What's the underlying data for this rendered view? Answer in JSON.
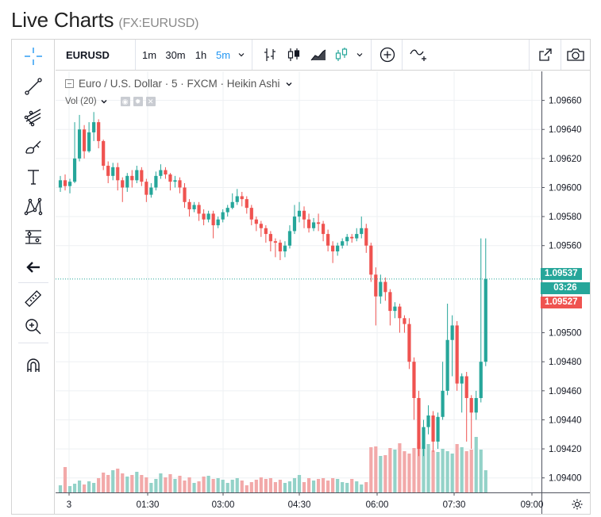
{
  "page": {
    "title": "Live Charts",
    "subtitle": "(FX:EURUSD)"
  },
  "toolbar": {
    "symbol": "EURUSD",
    "intervals": [
      "1m",
      "30m",
      "1h",
      "5m"
    ],
    "active_interval": "5m"
  },
  "legend": {
    "series": "Euro / U.S. Dollar · 5 · FXCM · Heikin Ashi",
    "volume": "Vol (20)"
  },
  "badges": {
    "last_price": "1.09537",
    "countdown": "03:26",
    "bid_price": "1.09527"
  },
  "colors": {
    "up": "#26a69a",
    "down": "#ef5350",
    "up_vol": "#93d2c8",
    "down_vol": "#f2a9a9",
    "accent": "#2196f3"
  },
  "icons": [
    "crosshair-icon",
    "trend-line-icon",
    "pitchfork-icon",
    "brush-icon",
    "text-icon",
    "pattern-icon",
    "fib-icon",
    "back-arrow-icon",
    "ruler-icon",
    "zoom-in-icon",
    "magnet-icon",
    "bars-icon",
    "candles-icon",
    "area-icon",
    "heikin-ashi-icon",
    "add-indicator-icon",
    "compare-icon",
    "fullscreen-icon",
    "camera-icon",
    "gear-icon"
  ],
  "chart_data": {
    "type": "candlestick",
    "title": "Euro / U.S. Dollar · 5 · FXCM · Heikin Ashi",
    "xlabel": "",
    "ylabel": "",
    "ylim": [
      1.0939,
      1.0968
    ],
    "yticks": [
      "1.09660",
      "1.09640",
      "1.09620",
      "1.09600",
      "1.09580",
      "1.09560",
      "1.09500",
      "1.09480",
      "1.09460",
      "1.09440",
      "1.09420",
      "1.09400"
    ],
    "xticks": [
      "3",
      "01:30",
      "03:00",
      "04:30",
      "06:00",
      "07:30",
      "09:00"
    ],
    "grid": true,
    "last_price": 1.09537,
    "series": [
      {
        "values": [
          [
            1.096,
            1.09605,
            1.09597,
            1.09608
          ],
          [
            1.09605,
            1.09601,
            1.09598,
            1.09609
          ],
          [
            1.09601,
            1.09604,
            1.09596,
            1.09606
          ],
          [
            1.09604,
            1.0962,
            1.09603,
            1.09645
          ],
          [
            1.0962,
            1.0964,
            1.09618,
            1.0965
          ],
          [
            1.0964,
            1.09625,
            1.0962,
            1.09643
          ],
          [
            1.09625,
            1.09638,
            1.09624,
            1.09645
          ],
          [
            1.09638,
            1.09645,
            1.09632,
            1.09652
          ],
          [
            1.09645,
            1.09632,
            1.09627,
            1.09647
          ],
          [
            1.09632,
            1.09615,
            1.09612,
            1.09633
          ],
          [
            1.09615,
            1.09608,
            1.09603,
            1.09618
          ],
          [
            1.09608,
            1.09614,
            1.09605,
            1.09617
          ],
          [
            1.09614,
            1.09605,
            1.09598,
            1.09617
          ],
          [
            1.09605,
            1.096,
            1.0959,
            1.09607
          ],
          [
            1.096,
            1.09608,
            1.09597,
            1.0961
          ],
          [
            1.09608,
            1.09605,
            1.096,
            1.09612
          ],
          [
            1.09605,
            1.09612,
            1.09603,
            1.09615
          ],
          [
            1.09612,
            1.09604,
            1.09601,
            1.09614
          ],
          [
            1.09604,
            1.09595,
            1.0959,
            1.09606
          ],
          [
            1.09595,
            1.096,
            1.09593,
            1.09603
          ],
          [
            1.096,
            1.09608,
            1.09598,
            1.09611
          ],
          [
            1.09608,
            1.09612,
            1.09606,
            1.09616
          ],
          [
            1.09612,
            1.09609,
            1.09606,
            1.09614
          ],
          [
            1.09609,
            1.09604,
            1.09598,
            1.0961
          ],
          [
            1.09604,
            1.09605,
            1.096,
            1.09608
          ],
          [
            1.09605,
            1.096,
            1.09596,
            1.09607
          ],
          [
            1.096,
            1.0959,
            1.09586,
            1.09603
          ],
          [
            1.0959,
            1.09585,
            1.0958,
            1.09592
          ],
          [
            1.09585,
            1.09588,
            1.09583,
            1.0959
          ],
          [
            1.09588,
            1.09582,
            1.09577,
            1.0959
          ],
          [
            1.09582,
            1.09578,
            1.09574,
            1.09585
          ],
          [
            1.09578,
            1.09582,
            1.09576,
            1.09584
          ],
          [
            1.09582,
            1.09574,
            1.09565,
            1.09584
          ],
          [
            1.09574,
            1.09578,
            1.09572,
            1.0958
          ],
          [
            1.09578,
            1.09583,
            1.09576,
            1.09585
          ],
          [
            1.09583,
            1.09586,
            1.0958,
            1.09588
          ],
          [
            1.09586,
            1.0959,
            1.09585,
            1.09596
          ],
          [
            1.0959,
            1.09594,
            1.09588,
            1.09599
          ],
          [
            1.09594,
            1.09592,
            1.09587,
            1.09597
          ],
          [
            1.09592,
            1.09586,
            1.09582,
            1.09594
          ],
          [
            1.09586,
            1.09578,
            1.09574,
            1.09588
          ],
          [
            1.09578,
            1.09575,
            1.0957,
            1.0958
          ],
          [
            1.09575,
            1.09572,
            1.09566,
            1.09577
          ],
          [
            1.09572,
            1.09568,
            1.09562,
            1.09574
          ],
          [
            1.09568,
            1.09563,
            1.09556,
            1.0957
          ],
          [
            1.09563,
            1.09562,
            1.09552,
            1.09565
          ],
          [
            1.09562,
            1.09556,
            1.0955,
            1.09564
          ],
          [
            1.09556,
            1.0956,
            1.09552,
            1.09563
          ],
          [
            1.0956,
            1.0957,
            1.09558,
            1.09574
          ],
          [
            1.0957,
            1.0958,
            1.09568,
            1.09588
          ],
          [
            1.0958,
            1.09584,
            1.09576,
            1.0959
          ],
          [
            1.09584,
            1.09578,
            1.09572,
            1.09587
          ],
          [
            1.09578,
            1.09572,
            1.09569,
            1.09582
          ],
          [
            1.09572,
            1.09576,
            1.0957,
            1.09579
          ],
          [
            1.09576,
            1.09575,
            1.0957,
            1.09582
          ],
          [
            1.09575,
            1.09568,
            1.09563,
            1.09577
          ],
          [
            1.09568,
            1.0956,
            1.09556,
            1.09571
          ],
          [
            1.0956,
            1.09556,
            1.09548,
            1.09563
          ],
          [
            1.09556,
            1.0956,
            1.09553,
            1.09562
          ],
          [
            1.0956,
            1.09563,
            1.09558,
            1.09565
          ],
          [
            1.09563,
            1.09566,
            1.0956,
            1.09568
          ],
          [
            1.09566,
            1.09565,
            1.09562,
            1.09568
          ],
          [
            1.09565,
            1.09568,
            1.09563,
            1.09572
          ],
          [
            1.09568,
            1.09572,
            1.09565,
            1.0958
          ],
          [
            1.09572,
            1.0956,
            1.09555,
            1.09575
          ],
          [
            1.0956,
            1.0954,
            1.09535,
            1.09562
          ],
          [
            1.0954,
            1.09525,
            1.09505,
            1.09545
          ],
          [
            1.09525,
            1.09535,
            1.0952,
            1.0954
          ],
          [
            1.09535,
            1.09528,
            1.09522,
            1.09538
          ],
          [
            1.09528,
            1.09515,
            1.09505,
            1.0953
          ],
          [
            1.09515,
            1.09518,
            1.0951,
            1.09521
          ],
          [
            1.09518,
            1.0951,
            1.095,
            1.0952
          ],
          [
            1.0951,
            1.09506,
            1.095,
            1.09512
          ],
          [
            1.09506,
            1.0948,
            1.09475,
            1.0951
          ],
          [
            1.0948,
            1.09455,
            1.0944,
            1.09483
          ],
          [
            1.09455,
            1.0942,
            1.09415,
            1.0946
          ],
          [
            1.0942,
            1.09435,
            1.09415,
            1.0944
          ],
          [
            1.09435,
            1.09443,
            1.0943,
            1.0945
          ],
          [
            1.09443,
            1.09425,
            1.09418,
            1.09446
          ],
          [
            1.09425,
            1.09442,
            1.0942,
            1.09445
          ],
          [
            1.09442,
            1.0946,
            1.0944,
            1.0948
          ],
          [
            1.0946,
            1.09495,
            1.09457,
            1.0952
          ],
          [
            1.09495,
            1.09505,
            1.0947,
            1.09512
          ],
          [
            1.09505,
            1.09465,
            1.0946,
            1.09508
          ],
          [
            1.09465,
            1.0947,
            1.09445,
            1.09472
          ],
          [
            1.0947,
            1.09455,
            1.09425,
            1.09473
          ],
          [
            1.09455,
            1.09445,
            1.0942,
            1.09457
          ],
          [
            1.09445,
            1.09455,
            1.0944,
            1.0946
          ],
          [
            1.09455,
            1.0948,
            1.09452,
            1.09565
          ],
          [
            1.0948,
            1.09537,
            1.09477,
            1.09565
          ]
        ]
      }
    ],
    "volume": [
      9,
      32,
      8,
      11,
      15,
      10,
      14,
      12,
      18,
      25,
      22,
      28,
      30,
      24,
      20,
      22,
      26,
      22,
      19,
      12,
      17,
      24,
      19,
      23,
      17,
      21,
      15,
      19,
      12,
      14,
      20,
      21,
      17,
      18,
      16,
      12,
      16,
      18,
      15,
      9,
      13,
      16,
      19,
      17,
      18,
      13,
      16,
      12,
      14,
      18,
      22,
      13,
      18,
      15,
      17,
      18,
      15,
      18,
      17,
      13,
      12,
      17,
      14,
      10,
      13,
      57,
      58,
      46,
      47,
      56,
      54,
      62,
      52,
      49,
      56,
      63,
      58,
      61,
      53,
      51,
      55,
      52,
      49,
      61,
      57,
      52,
      54,
      70,
      54,
      28
    ]
  }
}
